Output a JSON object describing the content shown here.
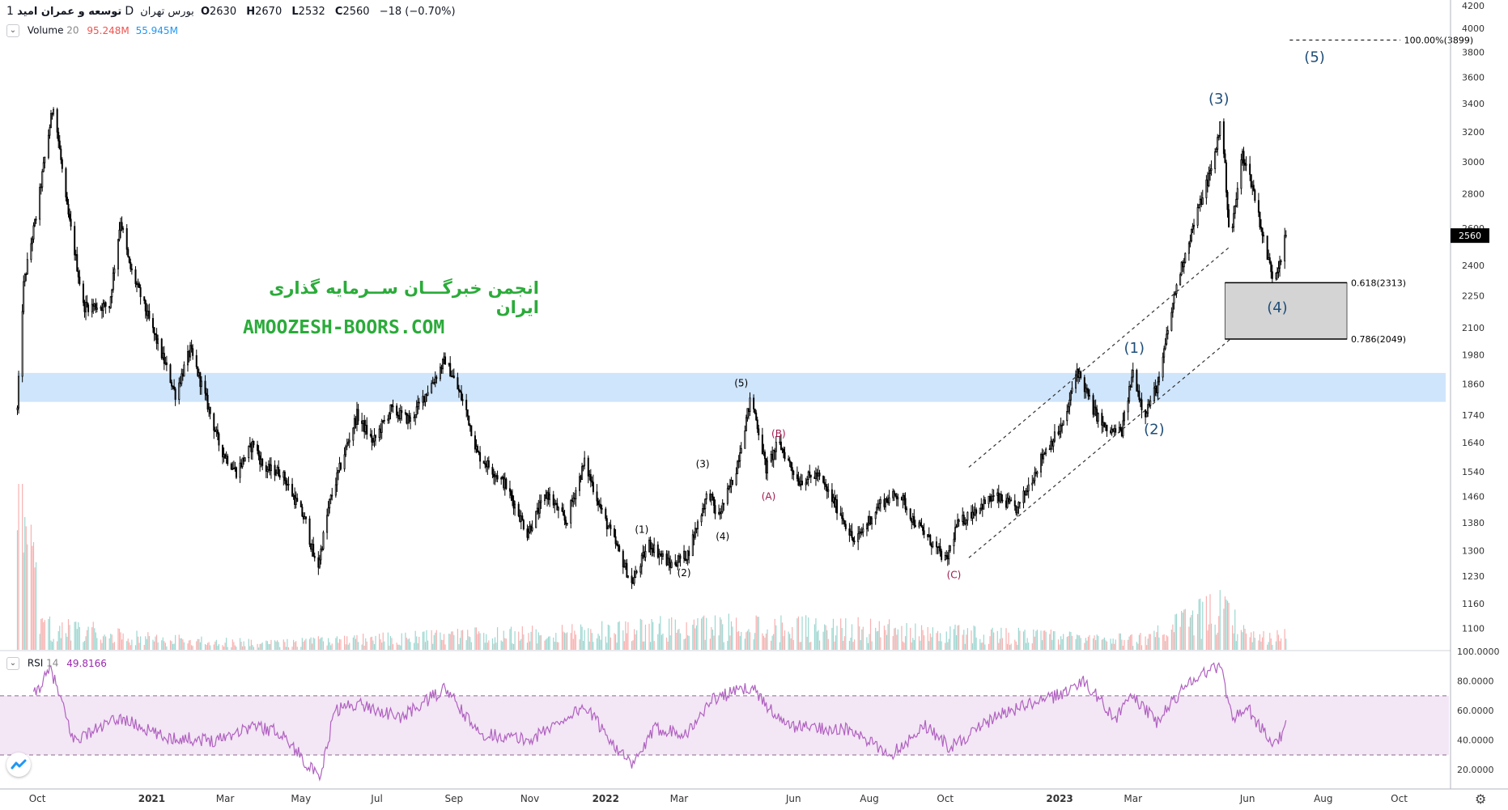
{
  "header": {
    "symbol_name": "توسعه و عمران امید",
    "interval": "1D",
    "exchange": "بورس تهران",
    "ohlc": [
      {
        "label": "O",
        "value": "2630"
      },
      {
        "label": "H",
        "value": "2670"
      },
      {
        "label": "L",
        "value": "2532"
      },
      {
        "label": "C",
        "value": "2560"
      }
    ],
    "change": "−18 (−0.70%)"
  },
  "volume_indicator": {
    "name": "Volume",
    "period": "20",
    "value1": "95.248M",
    "value2": "55.945M"
  },
  "rsi_indicator": {
    "name": "RSI",
    "period": "14",
    "value": "49.8166"
  },
  "watermark": {
    "line1": "انجمن خبرگـــان ســرمایه گذاری ایران",
    "line2": "AMOOZESH-BOORS.COM"
  },
  "colors": {
    "up": "#26a69a",
    "down": "#ef5350",
    "candle": "#000000",
    "wave_major": "#1f4e79",
    "wave_corrective": "#a0184e",
    "rsi_line": "#b061c0",
    "rsi_band": "#f3e6f5",
    "zone": "#cfe5fb",
    "fib_box": "#d4d4d4",
    "price_tag": "#000000"
  },
  "chart_data": [
    {
      "type": "candlestick",
      "title": "",
      "y_axis": {
        "ticks": [
          "4200",
          "4000",
          "3800",
          "3600",
          "3400",
          "3200",
          "3000",
          "2800",
          "2600",
          "2400",
          "2250",
          "2100",
          "1980",
          "1860",
          "1740",
          "1640",
          "1540",
          "1460",
          "1380",
          "1300",
          "1230",
          "1160",
          "1100"
        ],
        "range": [
          1050,
          4250
        ],
        "scale": "log"
      },
      "x_axis": {
        "ticks": [
          "Oct",
          "2021",
          "Mar",
          "May",
          "Jul",
          "Sep",
          "Nov",
          "2022",
          "Mar",
          "Jun",
          "Aug",
          "Oct",
          "2023",
          "Mar",
          "Jun",
          "Aug",
          "Oct"
        ],
        "range": [
          "2020-09-01",
          "2023-11-10"
        ]
      },
      "last_price": "2560",
      "anchors": [
        {
          "date": "2020-09-15",
          "price": 1760
        },
        {
          "date": "2020-09-20",
          "price": 2300
        },
        {
          "date": "2020-10-01",
          "price": 2700
        },
        {
          "date": "2020-10-14",
          "price": 3400
        },
        {
          "date": "2020-10-24",
          "price": 2750
        },
        {
          "date": "2020-11-07",
          "price": 2200
        },
        {
          "date": "2020-11-28",
          "price": 2200
        },
        {
          "date": "2020-12-07",
          "price": 2650
        },
        {
          "date": "2020-12-14",
          "price": 2400
        },
        {
          "date": "2021-01-01",
          "price": 2100
        },
        {
          "date": "2021-01-20",
          "price": 1820
        },
        {
          "date": "2021-02-01",
          "price": 2000
        },
        {
          "date": "2021-02-25",
          "price": 1620
        },
        {
          "date": "2021-03-10",
          "price": 1540
        },
        {
          "date": "2021-03-24",
          "price": 1640
        },
        {
          "date": "2021-04-01",
          "price": 1550
        },
        {
          "date": "2021-04-15",
          "price": 1540
        },
        {
          "date": "2021-05-05",
          "price": 1380
        },
        {
          "date": "2021-05-14",
          "price": 1240
        },
        {
          "date": "2021-05-24",
          "price": 1440
        },
        {
          "date": "2021-06-15",
          "price": 1740
        },
        {
          "date": "2021-06-28",
          "price": 1640
        },
        {
          "date": "2021-07-12",
          "price": 1760
        },
        {
          "date": "2021-07-28",
          "price": 1720
        },
        {
          "date": "2021-08-15",
          "price": 1870
        },
        {
          "date": "2021-08-25",
          "price": 1960
        },
        {
          "date": "2021-09-10",
          "price": 1770
        },
        {
          "date": "2021-09-20",
          "price": 1600
        },
        {
          "date": "2021-10-12",
          "price": 1500
        },
        {
          "date": "2021-10-30",
          "price": 1350
        },
        {
          "date": "2021-11-15",
          "price": 1470
        },
        {
          "date": "2021-11-30",
          "price": 1380
        },
        {
          "date": "2021-12-15",
          "price": 1570
        },
        {
          "date": "2021-12-30",
          "price": 1400
        },
        {
          "date": "2022-01-22",
          "price": 1210
        },
        {
          "date": "2022-02-05",
          "price": 1320
        },
        {
          "date": "2022-02-22",
          "price": 1260
        },
        {
          "date": "2022-03-08",
          "price": 1290
        },
        {
          "date": "2022-03-25",
          "price": 1480
        },
        {
          "date": "2022-04-01",
          "price": 1390
        },
        {
          "date": "2022-04-15",
          "price": 1530
        },
        {
          "date": "2022-04-28",
          "price": 1810
        },
        {
          "date": "2022-05-10",
          "price": 1550
        },
        {
          "date": "2022-05-20",
          "price": 1640
        },
        {
          "date": "2022-06-05",
          "price": 1510
        },
        {
          "date": "2022-06-20",
          "price": 1530
        },
        {
          "date": "2022-07-10",
          "price": 1400
        },
        {
          "date": "2022-07-20",
          "price": 1320
        },
        {
          "date": "2022-08-10",
          "price": 1440
        },
        {
          "date": "2022-08-25",
          "price": 1470
        },
        {
          "date": "2022-09-05",
          "price": 1390
        },
        {
          "date": "2022-09-25",
          "price": 1300
        },
        {
          "date": "2022-10-02",
          "price": 1270
        },
        {
          "date": "2022-10-10",
          "price": 1370
        },
        {
          "date": "2022-10-25",
          "price": 1420
        },
        {
          "date": "2022-11-10",
          "price": 1460
        },
        {
          "date": "2022-11-28",
          "price": 1420
        },
        {
          "date": "2022-12-10",
          "price": 1520
        },
        {
          "date": "2022-12-20",
          "price": 1610
        },
        {
          "date": "2022-12-28",
          "price": 1660
        },
        {
          "date": "2023-01-05",
          "price": 1710
        },
        {
          "date": "2023-01-15",
          "price": 1920
        },
        {
          "date": "2023-01-28",
          "price": 1760
        },
        {
          "date": "2023-02-08",
          "price": 1680
        },
        {
          "date": "2023-02-20",
          "price": 1680
        },
        {
          "date": "2023-03-01",
          "price": 1910
        },
        {
          "date": "2023-03-10",
          "price": 1740
        },
        {
          "date": "2023-03-22",
          "price": 1870
        },
        {
          "date": "2023-04-05",
          "price": 2300
        },
        {
          "date": "2023-04-20",
          "price": 2650
        },
        {
          "date": "2023-05-05",
          "price": 3000
        },
        {
          "date": "2023-05-11",
          "price": 3300
        },
        {
          "date": "2023-05-18",
          "price": 2500
        },
        {
          "date": "2023-05-28",
          "price": 3050
        },
        {
          "date": "2023-06-05",
          "price": 2850
        },
        {
          "date": "2023-06-15",
          "price": 2500
        },
        {
          "date": "2023-06-22",
          "price": 2330
        },
        {
          "date": "2023-06-28",
          "price": 2450
        },
        {
          "date": "2023-07-02",
          "price": 2560
        }
      ],
      "wave_labels": [
        {
          "text": "(1)",
          "date": "2023-03-02",
          "price": 1990,
          "style": "major"
        },
        {
          "text": "(2)",
          "date": "2023-03-18",
          "price": 1670,
          "style": "major"
        },
        {
          "text": "(3)",
          "date": "2023-05-09",
          "price": 3400,
          "style": "major"
        },
        {
          "text": "(4)",
          "date": "2023-06-25",
          "price": 2170,
          "style": "major"
        },
        {
          "text": "(5)",
          "date": "2023-07-25",
          "price": 3720,
          "style": "major"
        },
        {
          "text": "(1)",
          "date": "2022-01-30",
          "price": 1350,
          "style": "minor"
        },
        {
          "text": "(2)",
          "date": "2022-03-05",
          "price": 1230,
          "style": "minor"
        },
        {
          "text": "(3)",
          "date": "2022-03-20",
          "price": 1555,
          "style": "minor"
        },
        {
          "text": "(4)",
          "date": "2022-04-05",
          "price": 1330,
          "style": "minor"
        },
        {
          "text": "(5)",
          "date": "2022-04-20",
          "price": 1850,
          "style": "minor"
        },
        {
          "text": "(A)",
          "date": "2022-05-12",
          "price": 1450,
          "style": "corrective"
        },
        {
          "text": "(B)",
          "date": "2022-05-20",
          "price": 1660,
          "style": "corrective"
        },
        {
          "text": "(C)",
          "date": "2022-10-08",
          "price": 1225,
          "style": "corrective"
        }
      ],
      "fib_levels": [
        {
          "label": "100.00%(3899)",
          "price": 3899
        },
        {
          "label": "0.618(2313)",
          "price": 2313
        },
        {
          "label": "0.786(2049)",
          "price": 2049
        }
      ],
      "support_zone": {
        "from_price": 1790,
        "to_price": 1905
      },
      "channel": {
        "lower": [
          {
            "date": "2022-10-20",
            "price": 1280
          },
          {
            "date": "2023-06-15",
            "price": 2180
          }
        ],
        "upper": [
          {
            "date": "2022-10-20",
            "price": 1555
          },
          {
            "date": "2023-05-18",
            "price": 2500
          }
        ]
      }
    },
    {
      "type": "line",
      "title": "RSI",
      "y_axis": {
        "ticks": [
          "100.0000",
          "80.0000",
          "60.0000",
          "40.0000",
          "20.0000"
        ],
        "range": [
          7,
          100
        ]
      },
      "bands": [
        30,
        70
      ],
      "anchors": [
        {
          "date": "2020-09-28",
          "value": 70
        },
        {
          "date": "2020-10-12",
          "value": 88
        },
        {
          "date": "2020-10-30",
          "value": 40
        },
        {
          "date": "2020-12-07",
          "value": 55
        },
        {
          "date": "2021-01-10",
          "value": 42
        },
        {
          "date": "2021-02-20",
          "value": 40
        },
        {
          "date": "2021-03-24",
          "value": 50
        },
        {
          "date": "2021-04-15",
          "value": 45
        },
        {
          "date": "2021-05-10",
          "value": 20
        },
        {
          "date": "2021-05-16",
          "value": 12
        },
        {
          "date": "2021-05-28",
          "value": 60
        },
        {
          "date": "2021-06-15",
          "value": 65
        },
        {
          "date": "2021-07-20",
          "value": 55
        },
        {
          "date": "2021-08-25",
          "value": 75
        },
        {
          "date": "2021-09-20",
          "value": 45
        },
        {
          "date": "2021-11-01",
          "value": 40
        },
        {
          "date": "2021-12-15",
          "value": 63
        },
        {
          "date": "2022-01-22",
          "value": 22
        },
        {
          "date": "2022-02-10",
          "value": 48
        },
        {
          "date": "2022-03-08",
          "value": 45
        },
        {
          "date": "2022-03-28",
          "value": 68
        },
        {
          "date": "2022-04-28",
          "value": 76
        },
        {
          "date": "2022-05-25",
          "value": 50
        },
        {
          "date": "2022-07-15",
          "value": 47
        },
        {
          "date": "2022-08-18",
          "value": 30
        },
        {
          "date": "2022-09-15",
          "value": 50
        },
        {
          "date": "2022-10-05",
          "value": 35
        },
        {
          "date": "2022-11-15",
          "value": 58
        },
        {
          "date": "2022-12-30",
          "value": 70
        },
        {
          "date": "2023-01-20",
          "value": 80
        },
        {
          "date": "2023-02-15",
          "value": 55
        },
        {
          "date": "2023-03-01",
          "value": 70
        },
        {
          "date": "2023-03-20",
          "value": 52
        },
        {
          "date": "2023-04-15",
          "value": 80
        },
        {
          "date": "2023-05-10",
          "value": 91
        },
        {
          "date": "2023-05-20",
          "value": 55
        },
        {
          "date": "2023-06-01",
          "value": 62
        },
        {
          "date": "2023-06-20",
          "value": 38
        },
        {
          "date": "2023-06-28",
          "value": 42
        },
        {
          "date": "2023-07-02",
          "value": 49.8
        }
      ]
    },
    {
      "type": "bar",
      "title": "Volume",
      "anchors": [
        {
          "date": "2020-09-15",
          "value": 95
        },
        {
          "date": "2020-10-05",
          "value": 14
        },
        {
          "date": "2020-11-01",
          "value": 12
        },
        {
          "date": "2020-12-01",
          "value": 10
        },
        {
          "date": "2021-01-15",
          "value": 6
        },
        {
          "date": "2021-04-01",
          "value": 4
        },
        {
          "date": "2022-04-28",
          "value": 15
        },
        {
          "date": "2023-03-01",
          "value": 6
        },
        {
          "date": "2023-05-11",
          "value": 24
        },
        {
          "date": "2023-06-01",
          "value": 8
        }
      ]
    }
  ]
}
